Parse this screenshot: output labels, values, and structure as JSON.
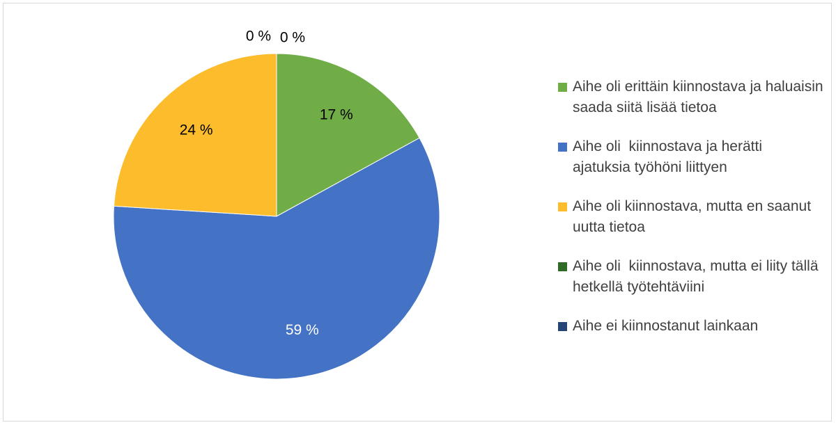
{
  "chart_data": {
    "type": "pie",
    "categories": [
      "Aihe oli erittäin kiinnostava ja haluaisin saada siitä lisää tietoa",
      "Aihe oli  kiinnostava ja herätti ajatuksia työhöni liittyen",
      "Aihe oli kiinnostava, mutta en saanut uutta tietoa",
      "Aihe oli  kiinnostava, mutta ei liity tällä hetkellä työtehtäviini",
      "Aihe ei kiinnostanut lainkaan"
    ],
    "values": [
      17,
      59,
      24,
      0,
      0
    ],
    "value_labels": [
      "17 %",
      "59 %",
      "24 %",
      "0 %",
      "0 %"
    ],
    "colors": [
      "#70ad47",
      "#4472c4",
      "#fdbc2c",
      "#2f6b27",
      "#264478"
    ],
    "legend": "right"
  }
}
